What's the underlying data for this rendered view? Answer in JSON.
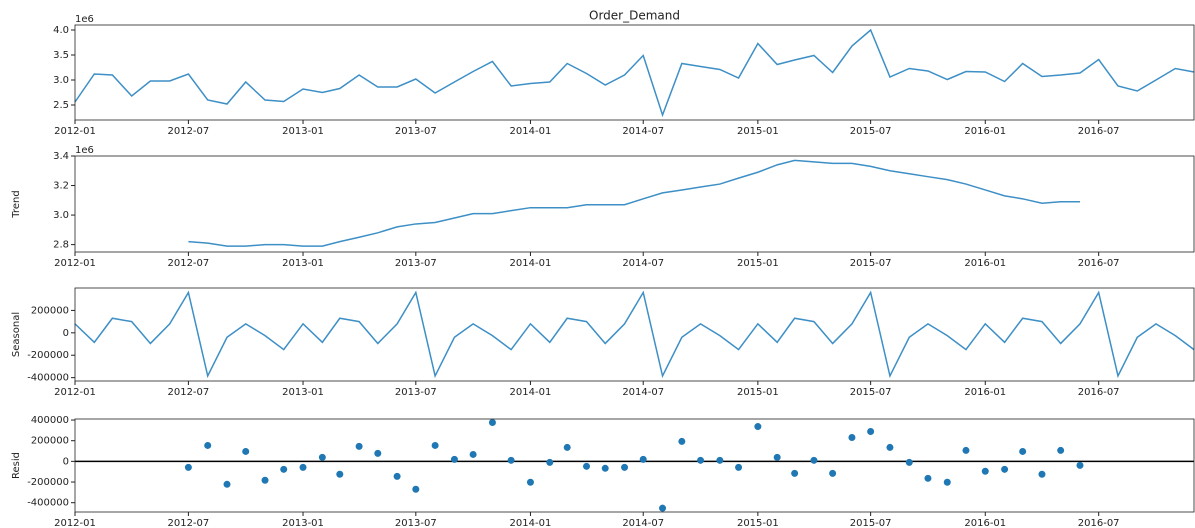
{
  "chart_data": [
    {
      "type": "line",
      "title": "Order_Demand",
      "offset_label": "1e6",
      "color": "#3d8fc6",
      "x": [
        "2012-01",
        "2012-02",
        "2012-03",
        "2012-04",
        "2012-05",
        "2012-06",
        "2012-07",
        "2012-08",
        "2012-09",
        "2012-10",
        "2012-11",
        "2012-12",
        "2013-01",
        "2013-02",
        "2013-03",
        "2013-04",
        "2013-05",
        "2013-06",
        "2013-07",
        "2013-08",
        "2013-09",
        "2013-10",
        "2013-11",
        "2013-12",
        "2014-01",
        "2014-02",
        "2014-03",
        "2014-04",
        "2014-05",
        "2014-06",
        "2014-07",
        "2014-08",
        "2014-09",
        "2014-10",
        "2014-11",
        "2014-12",
        "2015-01",
        "2015-02",
        "2015-03",
        "2015-04",
        "2015-05",
        "2015-06",
        "2015-07",
        "2015-08",
        "2015-09",
        "2015-10",
        "2015-11",
        "2015-12",
        "2016-01",
        "2016-02",
        "2016-03",
        "2016-04",
        "2016-05",
        "2016-06",
        "2016-07",
        "2016-08",
        "2016-09",
        "2016-10",
        "2016-11",
        "2016-12"
      ],
      "values": [
        2.56,
        3.12,
        3.1,
        2.68,
        2.98,
        2.98,
        3.12,
        2.6,
        2.52,
        2.96,
        2.6,
        2.57,
        2.82,
        2.75,
        2.83,
        3.1,
        2.86,
        2.86,
        3.02,
        2.74,
        2.96,
        3.17,
        3.37,
        2.88,
        2.93,
        2.96,
        3.33,
        3.13,
        2.9,
        3.1,
        3.49,
        2.3,
        3.33,
        3.27,
        3.21,
        3.04,
        3.73,
        3.31,
        3.4,
        3.49,
        3.15,
        3.68,
        4.0,
        3.06,
        3.23,
        3.18,
        3.01,
        3.17,
        3.16,
        2.97,
        3.33,
        3.07,
        3.1,
        3.14,
        3.41,
        2.88,
        2.78,
        3.0,
        3.23,
        3.16
      ],
      "xlim": [
        "2012-01",
        "2016-12"
      ],
      "xticks": [
        "2012-01",
        "2012-07",
        "2013-01",
        "2013-07",
        "2014-01",
        "2014-07",
        "2015-01",
        "2015-07",
        "2016-01",
        "2016-07"
      ],
      "ylim": [
        2.2,
        4.1
      ],
      "yticks": [
        2.5,
        {
          "value": 3,
          "label": "3.0"
        },
        3.5,
        {
          "value": 4,
          "label": "4.0"
        }
      ]
    },
    {
      "type": "line",
      "y_label": "Trend",
      "offset_label": "1e6",
      "color": "#3d8fc6",
      "x": [
        "2012-01",
        "2012-02",
        "2012-03",
        "2012-04",
        "2012-05",
        "2012-06",
        "2012-07",
        "2012-08",
        "2012-09",
        "2012-10",
        "2012-11",
        "2012-12",
        "2013-01",
        "2013-02",
        "2013-03",
        "2013-04",
        "2013-05",
        "2013-06",
        "2013-07",
        "2013-08",
        "2013-09",
        "2013-10",
        "2013-11",
        "2013-12",
        "2014-01",
        "2014-02",
        "2014-03",
        "2014-04",
        "2014-05",
        "2014-06",
        "2014-07",
        "2014-08",
        "2014-09",
        "2014-10",
        "2014-11",
        "2014-12",
        "2015-01",
        "2015-02",
        "2015-03",
        "2015-04",
        "2015-05",
        "2015-06",
        "2015-07",
        "2015-08",
        "2015-09",
        "2015-10",
        "2015-11",
        "2015-12",
        "2016-01",
        "2016-02",
        "2016-03",
        "2016-04",
        "2016-05",
        "2016-06",
        "2016-07",
        "2016-08",
        "2016-09",
        "2016-10",
        "2016-11",
        "2016-12"
      ],
      "values": [
        null,
        null,
        null,
        null,
        null,
        null,
        2.82,
        2.81,
        2.79,
        2.79,
        2.8,
        2.8,
        2.79,
        2.79,
        2.82,
        2.85,
        2.88,
        2.92,
        2.94,
        2.95,
        2.98,
        3.01,
        3.01,
        3.03,
        3.05,
        3.05,
        3.05,
        3.07,
        3.07,
        3.07,
        3.11,
        3.15,
        3.17,
        3.19,
        3.21,
        3.25,
        3.29,
        3.34,
        3.37,
        3.36,
        3.35,
        3.35,
        3.33,
        3.3,
        3.28,
        3.26,
        3.24,
        3.21,
        3.17,
        3.13,
        3.11,
        3.08,
        3.09,
        3.09,
        null,
        null,
        null,
        null,
        null,
        null
      ],
      "xlim": [
        "2012-01",
        "2016-12"
      ],
      "xticks": [
        "2012-01",
        "2012-07",
        "2013-01",
        "2013-07",
        "2014-01",
        "2014-07",
        "2015-01",
        "2015-07",
        "2016-01",
        "2016-07"
      ],
      "ylim": [
        2.75,
        3.4
      ],
      "yticks": [
        2.8,
        {
          "value": 3,
          "label": "3.0"
        },
        3.2,
        3.4
      ]
    },
    {
      "type": "line",
      "y_label": "Seasonal",
      "color": "#3d8fc6",
      "x": [
        "2012-01",
        "2012-02",
        "2012-03",
        "2012-04",
        "2012-05",
        "2012-06",
        "2012-07",
        "2012-08",
        "2012-09",
        "2012-10",
        "2012-11",
        "2012-12",
        "2013-01",
        "2013-02",
        "2013-03",
        "2013-04",
        "2013-05",
        "2013-06",
        "2013-07",
        "2013-08",
        "2013-09",
        "2013-10",
        "2013-11",
        "2013-12",
        "2014-01",
        "2014-02",
        "2014-03",
        "2014-04",
        "2014-05",
        "2014-06",
        "2014-07",
        "2014-08",
        "2014-09",
        "2014-10",
        "2014-11",
        "2014-12",
        "2015-01",
        "2015-02",
        "2015-03",
        "2015-04",
        "2015-05",
        "2015-06",
        "2015-07",
        "2015-08",
        "2015-09",
        "2015-10",
        "2015-11",
        "2015-12",
        "2016-01",
        "2016-02",
        "2016-03",
        "2016-04",
        "2016-05",
        "2016-06",
        "2016-07",
        "2016-08",
        "2016-09",
        "2016-10",
        "2016-11",
        "2016-12"
      ],
      "values": [
        80000,
        -85000,
        130000,
        100000,
        -95000,
        80000,
        360000,
        -385000,
        -40000,
        80000,
        -25000,
        -150000,
        80000,
        -85000,
        130000,
        100000,
        -95000,
        80000,
        360000,
        -385000,
        -40000,
        80000,
        -25000,
        -150000,
        80000,
        -85000,
        130000,
        100000,
        -95000,
        80000,
        360000,
        -385000,
        -40000,
        80000,
        -25000,
        -150000,
        80000,
        -85000,
        130000,
        100000,
        -95000,
        80000,
        360000,
        -385000,
        -40000,
        80000,
        -25000,
        -150000,
        80000,
        -85000,
        130000,
        100000,
        -95000,
        80000,
        360000,
        -385000,
        -40000,
        80000,
        -25000,
        -150000
      ],
      "xlim": [
        "2012-01",
        "2016-12"
      ],
      "xticks": [
        "2012-01",
        "2012-07",
        "2013-01",
        "2013-07",
        "2014-01",
        "2014-07",
        "2015-01",
        "2015-07",
        "2016-01",
        "2016-07"
      ],
      "ylim": [
        -430000,
        400000
      ],
      "yticks": [
        200000,
        0,
        -200000,
        -400000
      ]
    },
    {
      "type": "scatter",
      "y_label": "Resid",
      "color": "#1f77b4",
      "x": [
        "2012-01",
        "2012-02",
        "2012-03",
        "2012-04",
        "2012-05",
        "2012-06",
        "2012-07",
        "2012-08",
        "2012-09",
        "2012-10",
        "2012-11",
        "2012-12",
        "2013-01",
        "2013-02",
        "2013-03",
        "2013-04",
        "2013-05",
        "2013-06",
        "2013-07",
        "2013-08",
        "2013-09",
        "2013-10",
        "2013-11",
        "2013-12",
        "2014-01",
        "2014-02",
        "2014-03",
        "2014-04",
        "2014-05",
        "2014-06",
        "2014-07",
        "2014-08",
        "2014-09",
        "2014-10",
        "2014-11",
        "2014-12",
        "2015-01",
        "2015-02",
        "2015-03",
        "2015-04",
        "2015-05",
        "2015-06",
        "2015-07",
        "2015-08",
        "2015-09",
        "2015-10",
        "2015-11",
        "2015-12",
        "2016-01",
        "2016-02",
        "2016-03",
        "2016-04",
        "2016-05",
        "2016-06",
        "2016-07",
        "2016-08",
        "2016-09",
        "2016-10",
        "2016-11",
        "2016-12"
      ],
      "values": [
        null,
        null,
        null,
        null,
        null,
        null,
        -58000,
        154000,
        -222000,
        96000,
        -183000,
        -77000,
        -58000,
        39000,
        -125000,
        145000,
        77000,
        -145000,
        -270000,
        154000,
        19000,
        67000,
        376000,
        10000,
        -202000,
        -10000,
        135000,
        -48000,
        -67000,
        -58000,
        19000,
        -453000,
        193000,
        10000,
        10000,
        -58000,
        337000,
        39000,
        -116000,
        10000,
        -116000,
        231000,
        289000,
        135000,
        -10000,
        -164000,
        -202000,
        106000,
        -96000,
        -77000,
        96000,
        -125000,
        106000,
        -39000,
        null,
        null,
        null,
        null,
        null,
        null
      ],
      "xlim": [
        "2012-01",
        "2016-12"
      ],
      "xticks": [
        "2012-01",
        "2012-07",
        "2013-01",
        "2013-07",
        "2014-01",
        "2014-07",
        "2015-01",
        "2015-07",
        "2016-01",
        "2016-07"
      ],
      "ylim": [
        -490000,
        410000
      ],
      "yticks": [
        400000,
        200000,
        0,
        -200000,
        -400000
      ]
    }
  ]
}
